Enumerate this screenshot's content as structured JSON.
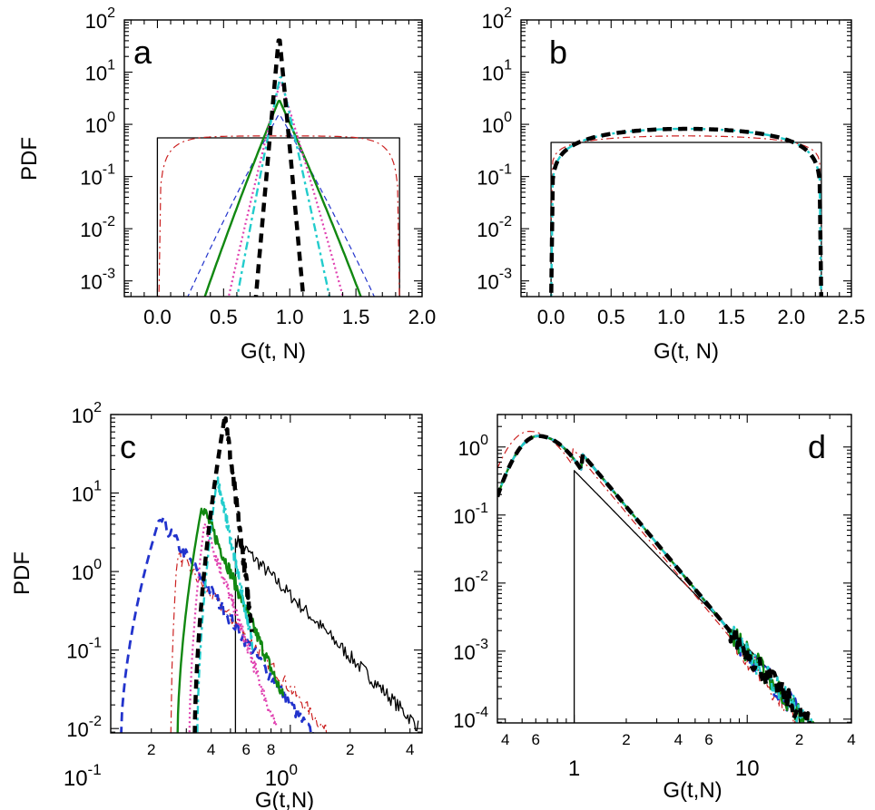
{
  "figure": {
    "panel_count": 4
  },
  "chart_data": [
    {
      "panel": "a",
      "type": "line",
      "xlabel": "G(t, N)",
      "ylabel": "PDF",
      "xscale": "linear",
      "yscale": "log",
      "xlim": [
        -0.25,
        2.0
      ],
      "ylim": [
        0.0005,
        100
      ],
      "xticks": [
        0.0,
        0.5,
        1.0,
        1.5,
        2.0
      ],
      "xtick_labels": [
        "0.0",
        "0.5",
        "1.0",
        "1.5",
        "2.0"
      ],
      "yticks_exp": [
        2,
        1,
        0,
        -1,
        -2,
        -3
      ],
      "series": [
        {
          "style": "solid-thin",
          "color": "#000000",
          "shape": "box",
          "x0": 0.0,
          "x1": 1.83,
          "level": 0.55
        },
        {
          "style": "dashdot-thin",
          "color": "#cc2222",
          "shape": "sym",
          "center": 0.92,
          "decay_in": 8,
          "halfwidth": 0.91,
          "peak": 0.6
        },
        {
          "style": "dashed-thin",
          "color": "#2233cc",
          "shape": "tri",
          "center": 0.92,
          "peak": 1.6,
          "s_left": 4.6,
          "s_right": 4.4
        },
        {
          "style": "solid",
          "color": "#118811",
          "shape": "tri",
          "center": 0.92,
          "peak": 3.0,
          "s_left": 6.2,
          "s_right": 5.6
        },
        {
          "style": "dotted",
          "color": "#e040b0",
          "shape": "tri",
          "center": 0.93,
          "peak": 7.0,
          "s_left": 10.0,
          "s_right": 8.2
        },
        {
          "style": "dashdot",
          "color": "#22cccc",
          "shape": "tri",
          "center": 0.93,
          "peak": 9.0,
          "s_left": 12.4,
          "s_right": 10.9
        },
        {
          "style": "dashed-thick",
          "color": "#000000",
          "shape": "tri",
          "center": 0.92,
          "peak": 55,
          "s_left": 28,
          "s_right": 27
        }
      ]
    },
    {
      "panel": "b",
      "type": "line",
      "xlabel": "G(t, N)",
      "ylabel": "",
      "xscale": "linear",
      "yscale": "log",
      "xlim": [
        -0.25,
        2.5
      ],
      "ylim": [
        0.0005,
        100
      ],
      "xticks": [
        0.0,
        0.5,
        1.0,
        1.5,
        2.0,
        2.5
      ],
      "xtick_labels": [
        "0.0",
        "0.5",
        "1.0",
        "1.5",
        "2.0",
        "2.5"
      ],
      "yticks_exp": [
        2,
        1,
        0,
        -1,
        -2,
        -3
      ],
      "series": [
        {
          "style": "solid-thin",
          "color": "#000000",
          "shape": "box",
          "x0": 0.0,
          "x1": 2.25,
          "level": 0.45
        },
        {
          "style": "dashdot-thin",
          "color": "#cc2222",
          "shape": "dome",
          "x0": 0.0,
          "x1": 2.25,
          "peak": 0.6,
          "p": 0.3
        },
        {
          "style": "dashdot",
          "color": "#22cccc",
          "shape": "dome",
          "x0": 0.0,
          "x1": 2.25,
          "peak": 0.82,
          "p": 0.6
        },
        {
          "style": "dashed-thick",
          "color": "#000000",
          "shape": "dome",
          "x0": 0.0,
          "x1": 2.25,
          "peak": 0.82,
          "p": 0.6
        }
      ]
    },
    {
      "panel": "c",
      "type": "line",
      "xlabel": "G(t,N)",
      "ylabel": "PDF",
      "xscale": "log",
      "yscale": "log",
      "xlim": [
        0.125,
        4.6
      ],
      "ylim": [
        0.0088,
        100
      ],
      "major_xticks": [
        {
          "value": 0.1,
          "label": "10",
          "exp": "-1"
        },
        {
          "value": 1.0,
          "label": "10",
          "exp": "0"
        }
      ],
      "minor_xtick_labels": [
        {
          "value": 0.2,
          "label": "2"
        },
        {
          "value": 0.4,
          "label": "4"
        },
        {
          "value": 0.6,
          "label": "6"
        },
        {
          "value": 0.8,
          "label": "8"
        },
        {
          "value": 2.0,
          "label": "2"
        },
        {
          "value": 4.0,
          "label": "4"
        }
      ],
      "yticks_exp": [
        2,
        1,
        0,
        -1,
        -2
      ],
      "series": [
        {
          "style": "solid-thin",
          "color": "#000000",
          "shape": "logtri",
          "x0": 0.53,
          "peak": 2.6,
          "rise": 0.0,
          "decay": 2.6,
          "x1": 4.4,
          "noisy": true
        },
        {
          "style": "dashdot-thin",
          "color": "#cc2222",
          "shape": "logtri",
          "x0": 0.25,
          "peak": 1.65,
          "apex": 0.27,
          "decay": 3.0,
          "x1": 2.4,
          "noisy": true
        },
        {
          "style": "dashed",
          "color": "#2233cc",
          "shape": "logtri",
          "x0": 0.14,
          "peak": 4.8,
          "apex": 0.22,
          "decay": 3.6,
          "x1": 1.85,
          "noisy": true
        },
        {
          "style": "solid",
          "color": "#118811",
          "shape": "logtri",
          "x0": 0.27,
          "peak": 7.0,
          "apex": 0.36,
          "decay": 6.0,
          "x1": 0.92,
          "noisy": true
        },
        {
          "style": "dotted",
          "color": "#e040b0",
          "shape": "logtri",
          "x0": 0.31,
          "peak": 4.2,
          "apex": 0.37,
          "decay": 7.3,
          "x1": 0.85,
          "noisy": true
        },
        {
          "style": "dashdot",
          "color": "#22cccc",
          "shape": "logtri",
          "x0": 0.34,
          "peak": 16,
          "apex": 0.43,
          "decay": 12,
          "x1": 0.65,
          "noisy": true
        },
        {
          "style": "dashed-thick",
          "color": "#000000",
          "shape": "logtri",
          "x0": 0.33,
          "peak": 100,
          "apex": 0.47,
          "decay": 20,
          "x1": 0.64,
          "noisy": true
        }
      ]
    },
    {
      "panel": "d",
      "type": "line",
      "xlabel": "G(t,N)",
      "ylabel": "",
      "xscale": "log",
      "yscale": "log",
      "xlim": [
        0.36,
        40
      ],
      "ylim": [
        8.8e-05,
        3.0
      ],
      "major_xticks": [
        {
          "value": 1,
          "label": "1"
        },
        {
          "value": 10,
          "label": "10"
        }
      ],
      "minor_xtick_labels": [
        {
          "value": 0.4,
          "label": "4"
        },
        {
          "value": 0.6,
          "label": "6"
        },
        {
          "value": 2,
          "label": "2"
        },
        {
          "value": 4,
          "label": "4"
        },
        {
          "value": 6,
          "label": "6"
        },
        {
          "value": 20,
          "label": "2"
        },
        {
          "value": 40,
          "label": "4"
        }
      ],
      "yticks_exp": [
        0,
        -1,
        -2,
        -3,
        -4
      ],
      "series": [
        {
          "style": "solid-thin",
          "color": "#000000",
          "shape": "logtri",
          "x0": 1.0,
          "peak": 0.45,
          "rise": 0.0,
          "decay": 2.6,
          "x1": 14,
          "noisy": false
        },
        {
          "style": "dashdot-thin",
          "color": "#cc2222",
          "shape": "hump",
          "apex": 0.55,
          "peak": 1.7,
          "noisy": true
        },
        {
          "style": "dashed",
          "color": "#2233cc",
          "shape": "hump",
          "apex": 0.62,
          "peak": 1.45,
          "noisy": true
        },
        {
          "style": "solid",
          "color": "#118811",
          "shape": "hump",
          "apex": 0.62,
          "peak": 1.45,
          "noisy": true
        },
        {
          "style": "dashdot",
          "color": "#22cccc",
          "shape": "hump",
          "apex": 0.62,
          "peak": 1.45,
          "noisy": true
        },
        {
          "style": "dashed-thick",
          "color": "#000000",
          "shape": "hump",
          "apex": 0.62,
          "peak": 1.45,
          "noisy": true
        }
      ]
    }
  ]
}
